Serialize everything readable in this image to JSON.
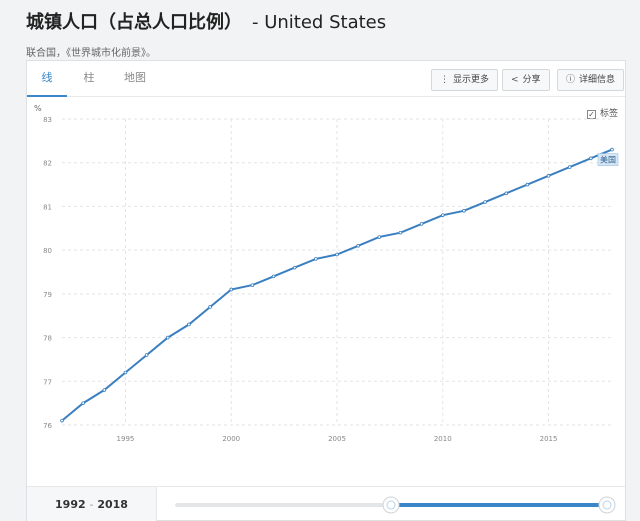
{
  "header": {
    "title": "城镇人口（占总人口比例）",
    "country": "- United States",
    "source": "联合国，《世界城市化前景》。"
  },
  "tabs": [
    {
      "label": "线",
      "active": true
    },
    {
      "label": "柱",
      "active": false
    },
    {
      "label": "地图",
      "active": false
    }
  ],
  "toolbar": {
    "show_more": "显示更多",
    "share": "分享",
    "details": "详细信息"
  },
  "label_toggle": {
    "label": "标签",
    "checked": true
  },
  "footer": {
    "range_start": "1992",
    "range_sep": "-",
    "range_end": "2018",
    "slider_fraction": [
      0.5,
      1.0
    ]
  },
  "colors": {
    "line": "#3a7fc0",
    "accent": "#3a86c8",
    "label_bg": "#d6e6f5"
  },
  "chart_data": {
    "type": "line",
    "ylabel": "%",
    "xlim": [
      1992,
      2018
    ],
    "ylim": [
      76,
      83
    ],
    "xticks": [
      1995,
      2000,
      2005,
      2010,
      2015
    ],
    "yticks": [
      76,
      77,
      78,
      79,
      80,
      81,
      82,
      83
    ],
    "grid": true,
    "series": [
      {
        "name": "美国",
        "x": [
          1992,
          1993,
          1994,
          1995,
          1996,
          1997,
          1998,
          1999,
          2000,
          2001,
          2002,
          2003,
          2004,
          2005,
          2006,
          2007,
          2008,
          2009,
          2010,
          2011,
          2012,
          2013,
          2014,
          2015,
          2016,
          2017,
          2018
        ],
        "values": [
          76.1,
          76.5,
          76.8,
          77.2,
          77.6,
          78.0,
          78.3,
          78.7,
          79.1,
          79.2,
          79.4,
          79.6,
          79.8,
          79.9,
          80.1,
          80.3,
          80.4,
          80.6,
          80.8,
          80.9,
          81.1,
          81.3,
          81.5,
          81.7,
          81.9,
          82.1,
          82.3
        ]
      }
    ]
  }
}
